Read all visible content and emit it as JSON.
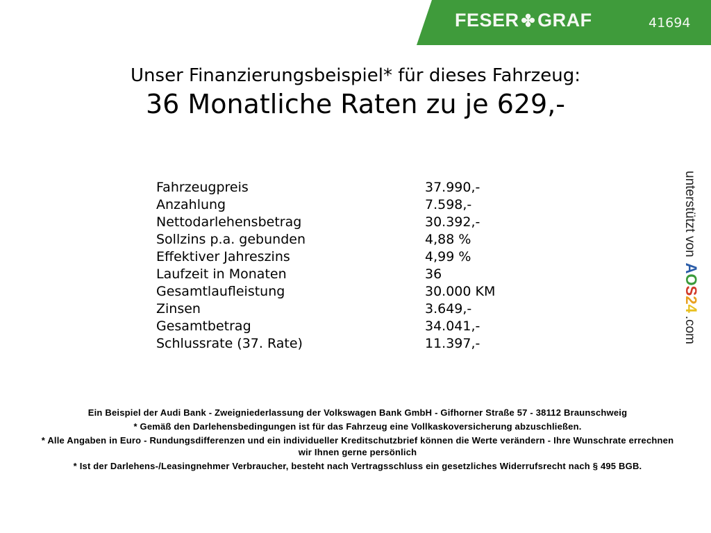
{
  "header": {
    "brand": "FESER GRAF",
    "brand_left": "FESER",
    "brand_right": "GRAF",
    "brand_icon": "clover-icon",
    "dealer_number": "41694",
    "brand_color": "#3f9b3b"
  },
  "title": {
    "line1": "Unser Finanzierungsbeispiel* für dieses Fahrzeug:",
    "line2": "36 Monatliche Raten zu je 629,-"
  },
  "rows": [
    {
      "label": "Fahrzeugpreis",
      "value": "37.990,-"
    },
    {
      "label": "Anzahlung",
      "value": "7.598,-"
    },
    {
      "label": "Nettodarlehensbetrag",
      "value": "30.392,-"
    },
    {
      "label": "Sollzins p.a. gebunden",
      "value": "4,88 %"
    },
    {
      "label": "Effektiver Jahreszins",
      "value": "4,99 %"
    },
    {
      "label": "Laufzeit in Monaten",
      "value": "36"
    },
    {
      "label": "Gesamtlaufleistung",
      "value": "30.000 KM"
    },
    {
      "label": "Zinsen",
      "value": "3.649,-"
    },
    {
      "label": "Gesamtbetrag",
      "value": "34.041,-"
    },
    {
      "label": "Schlussrate (37. Rate)",
      "value": "11.397,-"
    }
  ],
  "sidebar": {
    "supported_by": "unterstützt von",
    "aos_letters": [
      "A",
      "O",
      "S",
      "2",
      "4"
    ],
    "aos_colors": [
      "#2a5ca8",
      "#3a9a3a",
      "#d23a2a",
      "#e8a020",
      "#e8c020"
    ],
    "domain_suffix": ".com"
  },
  "footer": [
    "Ein Beispiel der Audi Bank - Zweigniederlassung der Volkswagen Bank GmbH - Gifhorner Straße 57 - 38112 Braunschweig",
    "* Gemäß den Darlehensbedingungen ist für das Fahrzeug eine Vollkaskoversicherung abzuschließen.",
    "* Alle Angaben in Euro - Rundungsdifferenzen und ein individueller Kreditschutzbrief können die Werte verändern - Ihre Wunschrate errechnen wir Ihnen gerne persönlich",
    "* Ist der Darlehens-/Leasingnehmer Verbraucher, besteht nach Vertragsschluss ein gesetzliches Widerrufsrecht nach § 495 BGB."
  ]
}
